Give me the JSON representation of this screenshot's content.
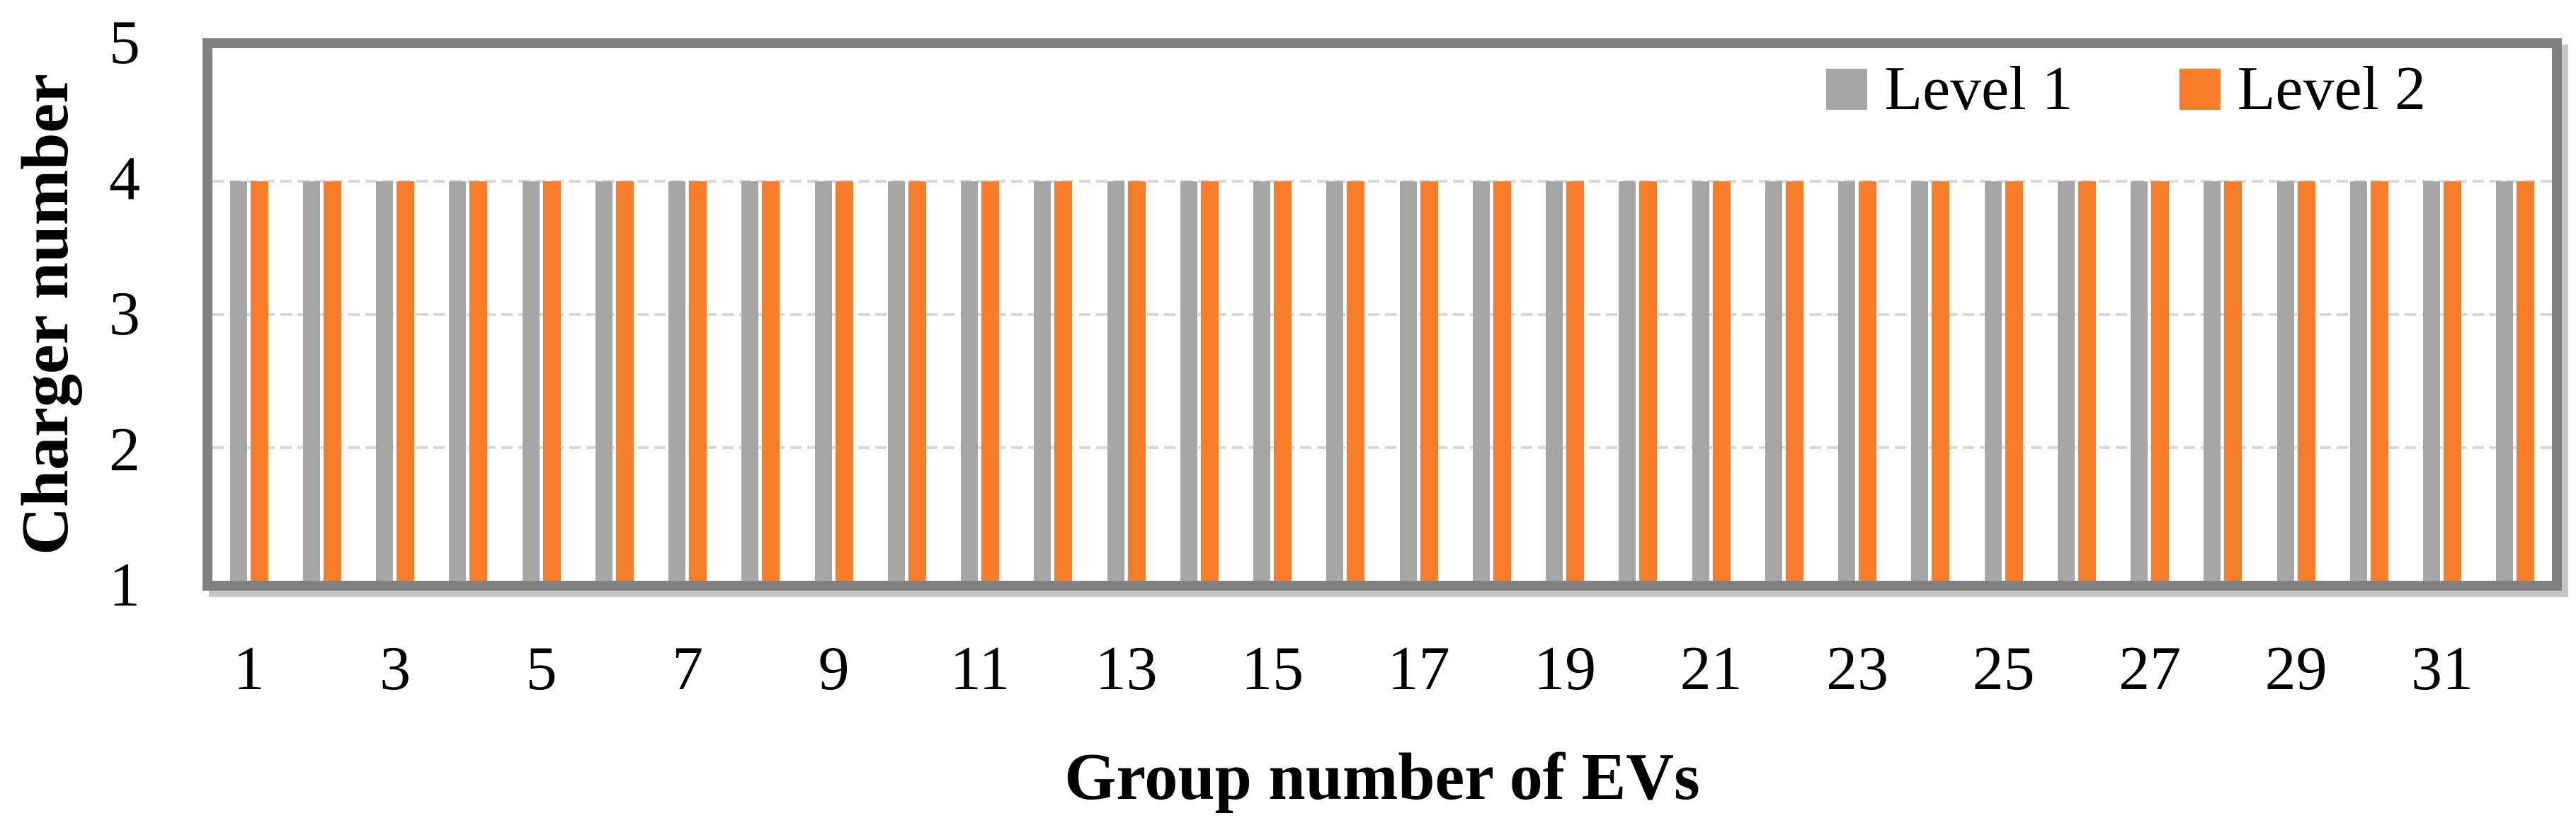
{
  "chart_data": {
    "type": "bar",
    "xlabel": "Group number of EVs",
    "ylabel": "Charger number",
    "categories": [
      1,
      2,
      3,
      4,
      5,
      6,
      7,
      8,
      9,
      10,
      11,
      12,
      13,
      14,
      15,
      16,
      17,
      18,
      19,
      20,
      21,
      22,
      23,
      24,
      25,
      26,
      27,
      28,
      29,
      30,
      31,
      32
    ],
    "x_tick_labels": [
      "1",
      "",
      "3",
      "",
      "5",
      "",
      "7",
      "",
      "9",
      "",
      "11",
      "",
      "13",
      "",
      "15",
      "",
      "17",
      "",
      "19",
      "",
      "21",
      "",
      "23",
      "",
      "25",
      "",
      "27",
      "",
      "29",
      "",
      "31",
      ""
    ],
    "series": [
      {
        "name": "Level 1",
        "color": "#A6A6A6",
        "values": [
          4,
          4,
          4,
          4,
          4,
          4,
          4,
          4,
          4,
          4,
          4,
          4,
          4,
          4,
          4,
          4,
          4,
          4,
          4,
          4,
          4,
          4,
          4,
          4,
          4,
          4,
          4,
          4,
          4,
          4,
          4,
          4
        ]
      },
      {
        "name": "Level 2",
        "color": "#F87D2A",
        "values": [
          4,
          4,
          4,
          4,
          4,
          4,
          4,
          4,
          4,
          4,
          4,
          4,
          4,
          4,
          4,
          4,
          4,
          4,
          4,
          4,
          4,
          4,
          4,
          4,
          4,
          4,
          4,
          4,
          4,
          4,
          4,
          4
        ]
      }
    ],
    "ylim": [
      1,
      5
    ],
    "yticks": [
      1,
      2,
      3,
      4,
      5
    ],
    "grid": {
      "y_values": [
        2,
        3,
        4
      ],
      "style": "dashed",
      "color": "#D9D9D9"
    },
    "axis_color": "#808080",
    "legend_position": "inside-top-right",
    "plot_background": "#FFFFFF"
  }
}
